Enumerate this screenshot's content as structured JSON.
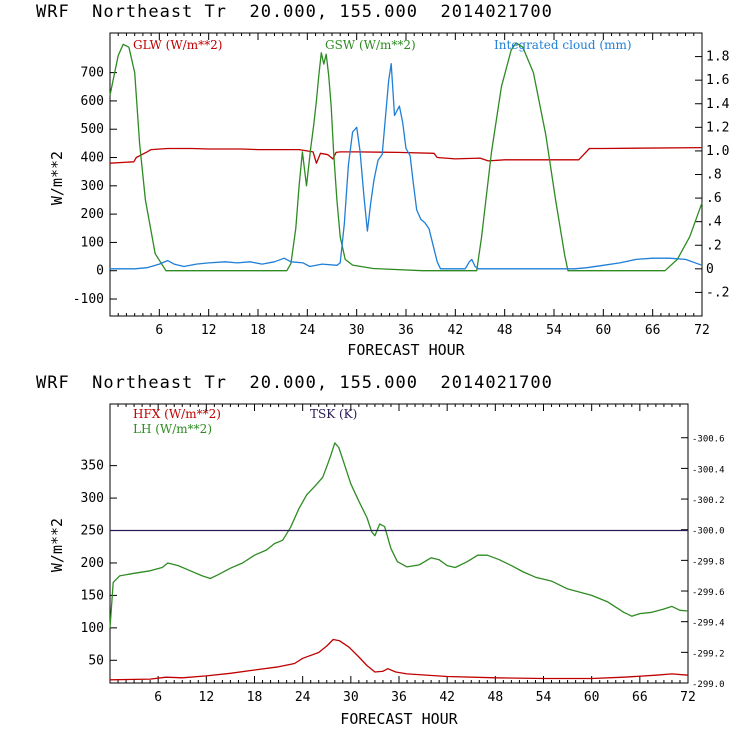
{
  "chart_data": [
    {
      "type": "line",
      "title": "WRF  Northeast Tr  20.000, 155.000  2014021700",
      "xlabel": "FORECAST HOUR",
      "ylabel": "W/m**2",
      "x_ticks": [
        6,
        12,
        18,
        24,
        30,
        36,
        42,
        48,
        54,
        60,
        66,
        72
      ],
      "y_ticks": [
        -100,
        0,
        100,
        200,
        300,
        400,
        500,
        600,
        700
      ],
      "y_right_ticks": [
        "-.2",
        "0",
        ".2",
        ".4",
        ".6",
        ".8",
        "1.0",
        "1.2",
        "1.4",
        "1.6",
        "1.8"
      ],
      "xlim": [
        0,
        72
      ],
      "ylim": [
        -160,
        840
      ],
      "y_right_lim": [
        -0.4,
        2.0
      ],
      "series": [
        {
          "name": "GLW (W/m**2)",
          "color": "#c00000",
          "axis": "left",
          "points": [
            [
              0,
              380
            ],
            [
              2.9,
              385
            ],
            [
              3.2,
              400
            ],
            [
              4.5,
              420
            ],
            [
              5,
              428
            ],
            [
              7,
              432
            ],
            [
              10,
              432
            ],
            [
              12,
              430
            ],
            [
              16,
              430
            ],
            [
              18,
              428
            ],
            [
              23,
              428
            ],
            [
              24.7,
              420
            ],
            [
              25.1,
              380
            ],
            [
              25.6,
              415
            ],
            [
              26.5,
              410
            ],
            [
              27.1,
              395
            ],
            [
              27.5,
              418
            ],
            [
              28,
              420
            ],
            [
              30,
              420
            ],
            [
              35,
              418
            ],
            [
              39.4,
              415
            ],
            [
              39.8,
              400
            ],
            [
              42,
              395
            ],
            [
              45,
              398
            ],
            [
              46,
              388
            ],
            [
              48,
              392
            ],
            [
              54,
              392
            ],
            [
              57,
              392
            ],
            [
              57.6,
              410
            ],
            [
              58.3,
              432
            ],
            [
              60,
              432
            ],
            [
              72,
              435
            ]
          ]
        },
        {
          "name": "GSW (W/m**2)",
          "color": "#2e8b22",
          "axis": "left",
          "points": [
            [
              0,
              620
            ],
            [
              1,
              760
            ],
            [
              1.6,
              800
            ],
            [
              2.3,
              790
            ],
            [
              3,
              700
            ],
            [
              3.6,
              450
            ],
            [
              4.3,
              250
            ],
            [
              5.5,
              60
            ],
            [
              6.8,
              0
            ],
            [
              21.5,
              0
            ],
            [
              22,
              25
            ],
            [
              22.6,
              150
            ],
            [
              23,
              300
            ],
            [
              23.4,
              420
            ],
            [
              23.9,
              300
            ],
            [
              24.4,
              430
            ],
            [
              24.8,
              520
            ],
            [
              25.1,
              600
            ],
            [
              25.4,
              690
            ],
            [
              25.7,
              770
            ],
            [
              26,
              730
            ],
            [
              26.3,
              765
            ],
            [
              26.6,
              690
            ],
            [
              26.9,
              580
            ],
            [
              27.2,
              420
            ],
            [
              27.6,
              250
            ],
            [
              28,
              120
            ],
            [
              28.6,
              40
            ],
            [
              29.5,
              20
            ],
            [
              32,
              8
            ],
            [
              38,
              0
            ],
            [
              44.6,
              0
            ],
            [
              45.2,
              120
            ],
            [
              46.4,
              420
            ],
            [
              47.6,
              650
            ],
            [
              48.8,
              780
            ],
            [
              49.4,
              805
            ],
            [
              50.2,
              790
            ],
            [
              51.5,
              700
            ],
            [
              53,
              480
            ],
            [
              54.2,
              250
            ],
            [
              55.3,
              55
            ],
            [
              55.7,
              0
            ],
            [
              67.5,
              0
            ],
            [
              69,
              40
            ],
            [
              70.5,
              120
            ],
            [
              72,
              240
            ]
          ]
        },
        {
          "name": "Integrated cloud (mm)",
          "color": "#1f7fd6",
          "axis": "right",
          "points": [
            [
              0,
              0
            ],
            [
              3,
              0
            ],
            [
              4.5,
              0.01
            ],
            [
              6,
              0.04
            ],
            [
              7,
              0.07
            ],
            [
              7.8,
              0.04
            ],
            [
              9,
              0.02
            ],
            [
              10.5,
              0.04
            ],
            [
              12,
              0.05
            ],
            [
              14,
              0.06
            ],
            [
              15.5,
              0.05
            ],
            [
              17,
              0.06
            ],
            [
              18.5,
              0.04
            ],
            [
              20,
              0.06
            ],
            [
              21.2,
              0.09
            ],
            [
              22,
              0.06
            ],
            [
              23.5,
              0.05
            ],
            [
              24.3,
              0.02
            ],
            [
              25.8,
              0.04
            ],
            [
              27.6,
              0.03
            ],
            [
              28,
              0.05
            ],
            [
              28.5,
              0.38
            ],
            [
              29,
              0.88
            ],
            [
              29.5,
              1.16
            ],
            [
              30,
              1.2
            ],
            [
              30.4,
              1.0
            ],
            [
              30.9,
              0.6
            ],
            [
              31.3,
              0.32
            ],
            [
              31.7,
              0.55
            ],
            [
              32.1,
              0.75
            ],
            [
              32.6,
              0.92
            ],
            [
              33.1,
              0.97
            ],
            [
              33.5,
              1.28
            ],
            [
              33.9,
              1.6
            ],
            [
              34.2,
              1.74
            ],
            [
              34.6,
              1.3
            ],
            [
              35.2,
              1.38
            ],
            [
              35.6,
              1.24
            ],
            [
              36,
              1.02
            ],
            [
              36.5,
              0.96
            ],
            [
              36.9,
              0.72
            ],
            [
              37.3,
              0.5
            ],
            [
              37.8,
              0.42
            ],
            [
              38.3,
              0.39
            ],
            [
              38.8,
              0.34
            ],
            [
              39.3,
              0.2
            ],
            [
              39.8,
              0.06
            ],
            [
              40.2,
              0
            ],
            [
              43.2,
              0
            ],
            [
              43.7,
              0.06
            ],
            [
              44,
              0.08
            ],
            [
              44.4,
              0.02
            ],
            [
              44.8,
              0
            ],
            [
              56.5,
              0
            ],
            [
              58,
              0.01
            ],
            [
              60,
              0.03
            ],
            [
              62,
              0.05
            ],
            [
              64,
              0.08
            ],
            [
              66,
              0.09
            ],
            [
              68,
              0.09
            ],
            [
              70,
              0.08
            ],
            [
              72,
              0.03
            ]
          ]
        }
      ]
    },
    {
      "type": "line",
      "title": "WRF  Northeast Tr  20.000, 155.000  2014021700",
      "xlabel": "FORECAST HOUR",
      "ylabel": "W/m**2",
      "x_ticks": [
        6,
        12,
        18,
        24,
        30,
        36,
        42,
        48,
        54,
        60,
        66,
        72
      ],
      "y_ticks": [
        50,
        100,
        150,
        200,
        250,
        300,
        350
      ],
      "y_right_ticks": [
        "299.0",
        "299.2",
        "299.4",
        "299.6",
        "299.8",
        "300.0",
        "300.2",
        "300.4",
        "300.6"
      ],
      "xlim": [
        0,
        72
      ],
      "ylim": [
        15,
        445
      ],
      "y_right_lim": [
        299.0,
        300.82
      ],
      "series": [
        {
          "name": "HFX (W/m**2)",
          "color": "#c00000",
          "axis": "left",
          "points": [
            [
              0,
              20
            ],
            [
              5,
              21
            ],
            [
              7,
              24
            ],
            [
              9,
              23
            ],
            [
              12,
              26
            ],
            [
              15,
              30
            ],
            [
              18,
              35
            ],
            [
              21,
              40
            ],
            [
              23,
              45
            ],
            [
              24,
              53
            ],
            [
              26,
              62
            ],
            [
              27,
              72
            ],
            [
              27.8,
              82
            ],
            [
              28.6,
              80
            ],
            [
              29.8,
              70
            ],
            [
              31,
              55
            ],
            [
              32,
              42
            ],
            [
              33,
              32
            ],
            [
              34,
              33
            ],
            [
              34.6,
              37
            ],
            [
              35.6,
              32
            ],
            [
              37,
              29
            ],
            [
              42,
              25
            ],
            [
              48,
              23
            ],
            [
              54,
              22
            ],
            [
              60,
              22
            ],
            [
              64,
              24
            ],
            [
              68,
              27
            ],
            [
              70,
              29
            ],
            [
              72,
              27
            ]
          ]
        },
        {
          "name": "LH  (W/m**2)",
          "color": "#2e8b22",
          "axis": "left",
          "points": [
            [
              0,
              100
            ],
            [
              0.4,
              170
            ],
            [
              1.2,
              180
            ],
            [
              3,
              184
            ],
            [
              5,
              188
            ],
            [
              6.5,
              193
            ],
            [
              7.2,
              200
            ],
            [
              8.5,
              196
            ],
            [
              10,
              188
            ],
            [
              11.5,
              180
            ],
            [
              12.5,
              176
            ],
            [
              13.5,
              182
            ],
            [
              15,
              192
            ],
            [
              16.5,
              200
            ],
            [
              18,
              212
            ],
            [
              19.5,
              220
            ],
            [
              20.5,
              230
            ],
            [
              21.5,
              235
            ],
            [
              22.5,
              255
            ],
            [
              23.5,
              283
            ],
            [
              24.5,
              305
            ],
            [
              25.5,
              318
            ],
            [
              26.5,
              332
            ],
            [
              27.1,
              352
            ],
            [
              27.5,
              366
            ],
            [
              28,
              385
            ],
            [
              28.5,
              378
            ],
            [
              29.2,
              352
            ],
            [
              30,
              322
            ],
            [
              31,
              295
            ],
            [
              32,
              270
            ],
            [
              32.6,
              248
            ],
            [
              33,
              242
            ],
            [
              33.6,
              260
            ],
            [
              34.2,
              256
            ],
            [
              35,
              222
            ],
            [
              35.8,
              202
            ],
            [
              37,
              194
            ],
            [
              38.5,
              197
            ],
            [
              40,
              208
            ],
            [
              41,
              205
            ],
            [
              42,
              196
            ],
            [
              43,
              193
            ],
            [
              44.5,
              202
            ],
            [
              45.8,
              212
            ],
            [
              47,
              212
            ],
            [
              48.5,
              205
            ],
            [
              50,
              196
            ],
            [
              51.5,
              186
            ],
            [
              53,
              178
            ],
            [
              55,
              172
            ],
            [
              57,
              160
            ],
            [
              60,
              150
            ],
            [
              62,
              140
            ],
            [
              64,
              124
            ],
            [
              65,
              118
            ],
            [
              66,
              122
            ],
            [
              67.5,
              124
            ],
            [
              69,
              129
            ],
            [
              70,
              133
            ],
            [
              71,
              127
            ],
            [
              72,
              126
            ]
          ]
        },
        {
          "name": "TSK (K)",
          "color": "#2b1a55",
          "axis": "right",
          "points": [
            [
              0,
              299.995
            ],
            [
              72,
              299.995
            ]
          ]
        }
      ]
    }
  ]
}
